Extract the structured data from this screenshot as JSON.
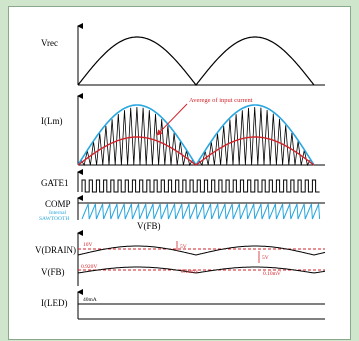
{
  "labels": {
    "vrec": "Vrec",
    "ilm": "I(Lm)",
    "gate1": "GATE1",
    "comp": "COMP",
    "internal": "Internal",
    "sawtooth": "SAWTOOTH",
    "vfb_comp": "V(FB)",
    "vdrain": "V(DRAIN)",
    "vfb": "V(FB)",
    "iled": "I(LED)"
  },
  "annotations": {
    "average_input_current": "Averege of input current",
    "drain_level": "10V",
    "fb_level": "0.920V",
    "delta_5v_a": "5V",
    "delta_5v_b": "5V",
    "delta_fb_a": "0.10mV",
    "delta_fb_b": "0.10mV",
    "led_current": "40mA"
  },
  "colors": {
    "panel_bg": "#ffffff",
    "page_bg": "#cfe5cc",
    "envelope": "#29a6e0",
    "average": "#d2232a",
    "sawtooth": "#29a6e0",
    "trace": "#000000"
  }
}
